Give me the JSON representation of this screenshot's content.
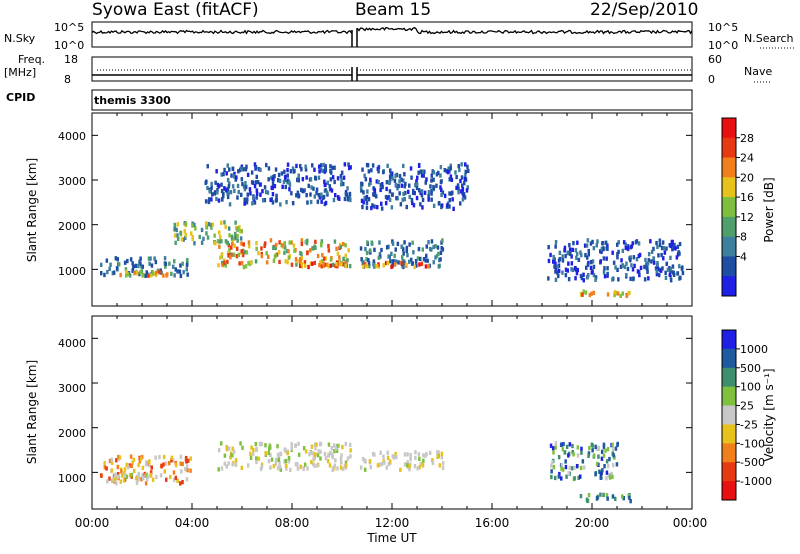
{
  "header": {
    "station": "Syowa East (fitACF)",
    "beam": "Beam 15",
    "date": "22/Sep/2010"
  },
  "nsky_panel": {
    "label": "N.Sky",
    "ticks_left": [
      "10^5",
      "10^0"
    ],
    "label_right": "N.Search",
    "ticks_right": [
      "10^5",
      "10^0"
    ]
  },
  "freq_panel": {
    "label_line1": "Freq.",
    "label_line2": "[MHz]",
    "ticks_left": [
      "18",
      "8"
    ],
    "label_right": "Nave",
    "ticks_right": [
      "60",
      "0"
    ]
  },
  "cpid": {
    "label": "CPID",
    "value": "themis 3300"
  },
  "power_panel": {
    "ylabel": "Slant Range [km]",
    "yticks": [
      "1000",
      "2000",
      "3000",
      "4000"
    ],
    "colorbar_label": "Power [dB]",
    "colorbar_ticks": [
      "4",
      "8",
      "12",
      "16",
      "20",
      "24",
      "28"
    ],
    "colorbar_colors": [
      "#1f1fe6",
      "#1d4ea3",
      "#3f7f9e",
      "#4f9f6c",
      "#7fbf3f",
      "#e7c21c",
      "#f07f1c",
      "#e83a12",
      "#e81010"
    ]
  },
  "velocity_panel": {
    "ylabel": "Slant Range [km]",
    "yticks": [
      "1000",
      "2000",
      "3000",
      "4000"
    ],
    "colorbar_label": "Velocity [m s⁻¹]",
    "colorbar_ticks": [
      "1000",
      "500",
      "100",
      "25",
      "-25",
      "-100",
      "-500",
      "-1000"
    ],
    "colorbar_colors": [
      "#1f1fe6",
      "#1d5a9e",
      "#3f8f6e",
      "#7fc03f",
      "#c8c8c8",
      "#e7c21c",
      "#f07f1c",
      "#e83a12",
      "#e81010"
    ]
  },
  "x_axis": {
    "label": "Time UT",
    "ticks": [
      "00:00",
      "04:00",
      "08:00",
      "12:00",
      "16:00",
      "20:00",
      "00:00"
    ]
  },
  "chart_data": {
    "type": "heatmap",
    "x_range_hours": [
      0,
      24
    ],
    "y_range_km": [
      180,
      4500
    ],
    "data_gap_hours": [
      10.4,
      10.6
    ],
    "power_features": [
      {
        "t": [
          0.3,
          3.9
        ],
        "r": [
          900,
          1300
        ],
        "level": "8-12 dB"
      },
      {
        "t": [
          0.8,
          3.0
        ],
        "r": [
          900,
          1000
        ],
        "level": "20-28 dB"
      },
      {
        "t": [
          3.2,
          6.0
        ],
        "r": [
          1600,
          2100
        ],
        "level": "12-20 dB"
      },
      {
        "t": [
          5.0,
          10.3
        ],
        "r": [
          1100,
          1700
        ],
        "level": "16-28 dB"
      },
      {
        "t": [
          8.2,
          10.3
        ],
        "r": [
          1100,
          1200
        ],
        "level": "24-28 dB"
      },
      {
        "t": [
          4.5,
          10.3
        ],
        "r": [
          2500,
          3400
        ],
        "level": "4-12 dB"
      },
      {
        "t": [
          10.7,
          14.0
        ],
        "r": [
          1100,
          1700
        ],
        "level": "8-20 dB"
      },
      {
        "t": [
          10.7,
          13.5
        ],
        "r": [
          1100,
          1200
        ],
        "level": "24-28 dB"
      },
      {
        "t": [
          10.7,
          15.0
        ],
        "r": [
          2400,
          3400
        ],
        "level": "4-12 dB"
      },
      {
        "t": [
          18.2,
          23.6
        ],
        "r": [
          800,
          1700
        ],
        "level": "4-12 dB"
      },
      {
        "t": [
          19.5,
          21.5
        ],
        "r": [
          450,
          550
        ],
        "level": "20-28 dB"
      }
    ],
    "velocity_features": [
      {
        "t": [
          0.3,
          3.9
        ],
        "r": [
          800,
          1400
        ],
        "level": "-100 to -500"
      },
      {
        "t": [
          0.8,
          3.0
        ],
        "r": [
          900,
          1000
        ],
        "level": "-25 to 25"
      },
      {
        "t": [
          5.0,
          10.3
        ],
        "r": [
          1100,
          1700
        ],
        "level": "-25 to 25"
      },
      {
        "t": [
          10.7,
          14.0
        ],
        "r": [
          1100,
          1500
        ],
        "level": "-25 to 25"
      },
      {
        "t": [
          18.3,
          21.0
        ],
        "r": [
          900,
          1700
        ],
        "level": "100 to 1000"
      },
      {
        "t": [
          19.5,
          21.5
        ],
        "r": [
          400,
          550
        ],
        "level": "100 to 500"
      }
    ]
  }
}
